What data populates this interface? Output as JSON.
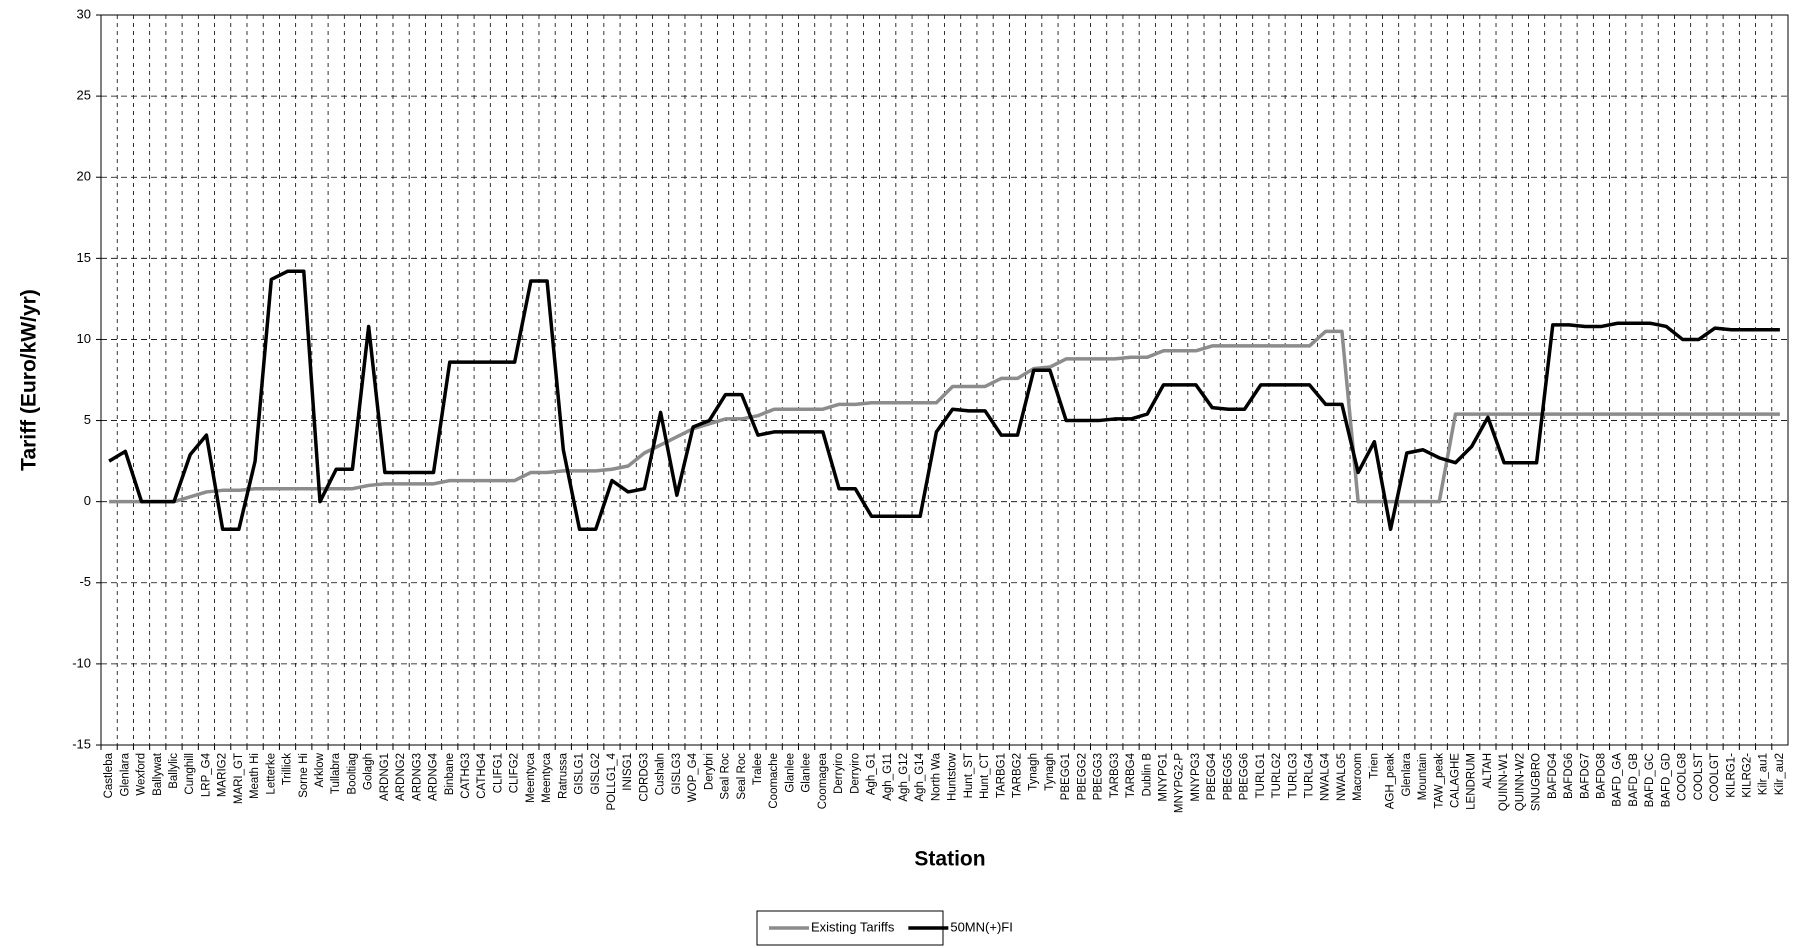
{
  "chart_data": {
    "type": "line",
    "x_label": "Station",
    "y_label": "Tariff (Euro/kW/yr)",
    "categories": [
      "Castleba",
      "Glenlara",
      "Wexford",
      "Ballywat",
      "Ballylic",
      "Cunghill",
      "LRP_G4",
      "MARIG2",
      "MARI_GT",
      "Meath Hi",
      "Letterke",
      "Trillick",
      "Sorne Hi",
      "Arklow",
      "Tullabra",
      "Booltiag",
      "Golagh",
      "ARDNG1",
      "ARDNG2",
      "ARDNG3",
      "ARDNG4",
      "Binbane",
      "CATHG3",
      "CATHG4",
      "CLIFG1",
      "CLIFG2",
      "Meentyca",
      "Meentyca",
      "Ratrussa",
      "GISLG1",
      "GISLG2",
      "POLLG1_4",
      "INISG1",
      "CDRDG3",
      "Cushaln",
      "GISLG3",
      "WOP_G4",
      "Derybri",
      "Seal Roc",
      "Seal Roc",
      "Tralee",
      "Coomache",
      "Glanlee",
      "Glanlee",
      "Coomagea",
      "Derryiro",
      "Derryiro",
      "Agh_G1",
      "Agh_G11",
      "Agh_G12",
      "Agh_G14",
      "North Wa",
      "Huntstow",
      "Hunt_ST",
      "Hunt_CT",
      "TARBG1",
      "TARBG2",
      "Tynagh",
      "Tynagh",
      "PBEGG1",
      "PBEGG2",
      "PBEGG3",
      "TARBG3",
      "TARBG4",
      "Dublin B",
      "MNYPG1",
      "MNYPG2-P",
      "MNYPG3",
      "PBEGG4",
      "PBEGG5",
      "PBEGG6",
      "TURLG1",
      "TURLG2",
      "TURLG3",
      "TURLG4",
      "NWALG4",
      "NWALG5",
      "Macroom",
      "Trien",
      "AGH_peak",
      "Glenlara",
      "Mountain",
      "TAW_peak",
      "CALAGHE",
      "LENDRUM",
      "ALTAH",
      "QUINN-W1",
      "QUINN-W2",
      "SNUGBRO",
      "BAFDG4",
      "BAFDG6",
      "BAFDG7",
      "BAFDG8",
      "BAFD_GA",
      "BAFD_GB",
      "BAFD_GC",
      "BAFD_GD",
      "COOLG8",
      "COOLST",
      "COOLGT",
      "KILRG1-",
      "KILRG2-",
      "Kilr_au1",
      "Kilr_au2"
    ],
    "series": [
      {
        "name": "Existing Tariffs",
        "color": "#8c8c8c",
        "values": [
          0,
          0,
          0,
          0,
          0,
          0.3,
          0.6,
          0.7,
          0.7,
          0.8,
          0.8,
          0.8,
          0.8,
          0.8,
          0.8,
          0.8,
          1.0,
          1.1,
          1.1,
          1.1,
          1.1,
          1.3,
          1.3,
          1.3,
          1.3,
          1.3,
          1.8,
          1.8,
          1.9,
          1.9,
          1.9,
          2.0,
          2.2,
          3.0,
          3.5,
          4.0,
          4.5,
          4.8,
          5.1,
          5.1,
          5.3,
          5.7,
          5.7,
          5.7,
          5.7,
          6.0,
          6.0,
          6.1,
          6.1,
          6.1,
          6.1,
          6.1,
          7.1,
          7.1,
          7.1,
          7.6,
          7.6,
          8.2,
          8.3,
          8.8,
          8.8,
          8.8,
          8.8,
          8.9,
          8.9,
          9.3,
          9.3,
          9.3,
          9.6,
          9.6,
          9.6,
          9.6,
          9.6,
          9.6,
          9.6,
          10.5,
          10.5,
          0,
          0,
          0,
          0,
          0,
          0,
          5.4,
          5.4,
          5.4,
          5.4,
          5.4,
          5.4,
          5.4,
          5.4,
          5.4,
          5.4,
          5.4,
          5.4,
          5.4,
          5.4,
          5.4,
          5.4,
          5.4,
          5.4,
          5.4,
          5.4,
          5.4
        ]
      },
      {
        "name": "50MN(+)FI",
        "color": "#000000",
        "values": [
          2.5,
          3.1,
          0,
          0,
          0,
          2.9,
          4.1,
          -1.7,
          -1.7,
          2.5,
          13.7,
          14.2,
          14.2,
          0,
          2.0,
          2.0,
          10.8,
          1.8,
          1.8,
          1.8,
          1.8,
          8.6,
          8.6,
          8.6,
          8.6,
          8.6,
          13.6,
          13.6,
          3.2,
          -1.7,
          -1.7,
          1.3,
          0.6,
          0.8,
          5.5,
          0.4,
          4.6,
          5.0,
          6.6,
          6.6,
          4.1,
          4.3,
          4.3,
          4.3,
          4.3,
          0.8,
          0.8,
          -0.9,
          -0.9,
          -0.9,
          -0.9,
          4.3,
          5.7,
          5.6,
          5.6,
          4.1,
          4.1,
          8.1,
          8.1,
          5.0,
          5.0,
          5.0,
          5.1,
          5.1,
          5.4,
          7.2,
          7.2,
          7.2,
          5.8,
          5.7,
          5.7,
          7.2,
          7.2,
          7.2,
          7.2,
          6.0,
          6.0,
          1.8,
          3.7,
          -1.7,
          3.0,
          3.2,
          2.7,
          2.4,
          3.4,
          5.2,
          2.4,
          2.4,
          2.4,
          10.9,
          10.9,
          10.8,
          10.8,
          11.0,
          11.0,
          11.0,
          10.8,
          10.0,
          10.0,
          10.7,
          10.6,
          10.6,
          10.6,
          10.6
        ]
      }
    ],
    "ylim": [
      -15,
      30
    ],
    "yticks": [
      -15,
      -10,
      -5,
      0,
      5,
      10,
      15,
      20,
      25,
      30
    ],
    "grid": true,
    "legend": "bottom"
  }
}
